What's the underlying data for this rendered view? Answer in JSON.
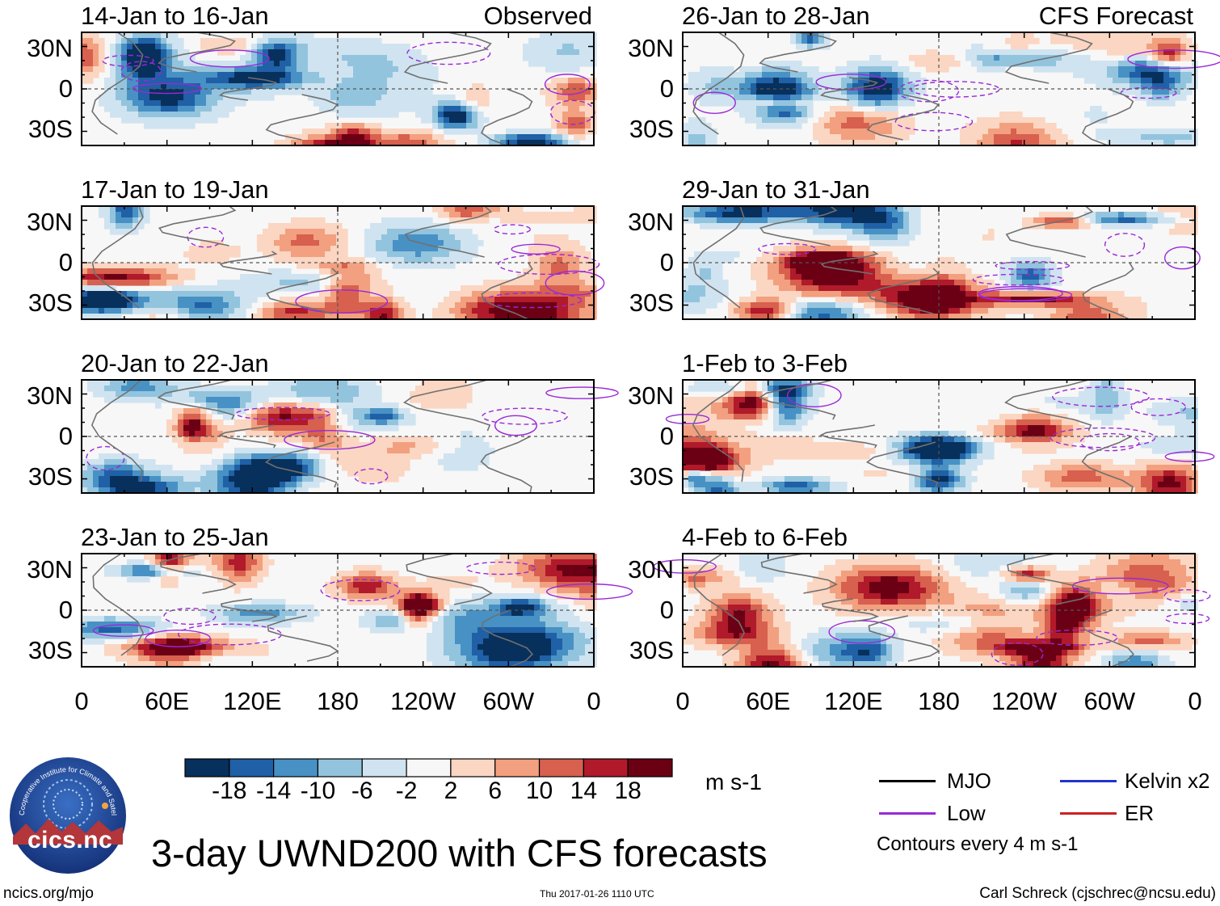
{
  "main_title": "3-day UWND200 with CFS forecasts",
  "footer": {
    "left": "ncics.org/mjo",
    "center": "Thu 2017-01-26 1110 UTC",
    "right": "Carl Schreck (cjschrec@ncsu.edu)"
  },
  "logo": {
    "text": "cics.nc",
    "arc_text": "Cooperative Institute for Climate and Satellites"
  },
  "colorbar": {
    "units": "m s-1",
    "colors": [
      "#08305c",
      "#1f60a6",
      "#4891c4",
      "#93c4de",
      "#d0e3f0",
      "#f7f7f7",
      "#fbd6c2",
      "#f2a07f",
      "#d7604e",
      "#b01a2a",
      "#6b0015"
    ],
    "ticks": [
      "-18",
      "-14",
      "-10",
      "-6",
      "-2",
      "2",
      "6",
      "10",
      "14",
      "18"
    ]
  },
  "legend": {
    "items": [
      {
        "label": "MJO",
        "color": "#000000"
      },
      {
        "label": "Kelvin x2",
        "color": "#2233cc"
      },
      {
        "label": "Low",
        "color": "#9a28d8"
      },
      {
        "label": "ER",
        "color": "#cc2222"
      }
    ],
    "note": "Contours every 4 m s-1"
  },
  "chart_data": [
    {
      "type": "heatmap",
      "columns": [
        {
          "title": "Observed",
          "panels": [
            "14-Jan to 16-Jan",
            "17-Jan to 19-Jan",
            "20-Jan to 22-Jan",
            "23-Jan to 25-Jan"
          ]
        },
        {
          "title": "CFS Forecast",
          "panels": [
            "26-Jan to 28-Jan",
            "29-Jan to 31-Jan",
            "1-Feb to 3-Feb",
            "4-Feb to 6-Feb"
          ]
        }
      ],
      "x_ticks": [
        "0",
        "60E",
        "120E",
        "180",
        "120W",
        "60W",
        "0"
      ],
      "y_ticks": [
        "30N",
        "0",
        "30S"
      ],
      "xlim": [
        0,
        360
      ],
      "ylim": [
        -40,
        40
      ],
      "variable": "200-hPa zonal wind anomaly",
      "units": "m s-1"
    }
  ]
}
